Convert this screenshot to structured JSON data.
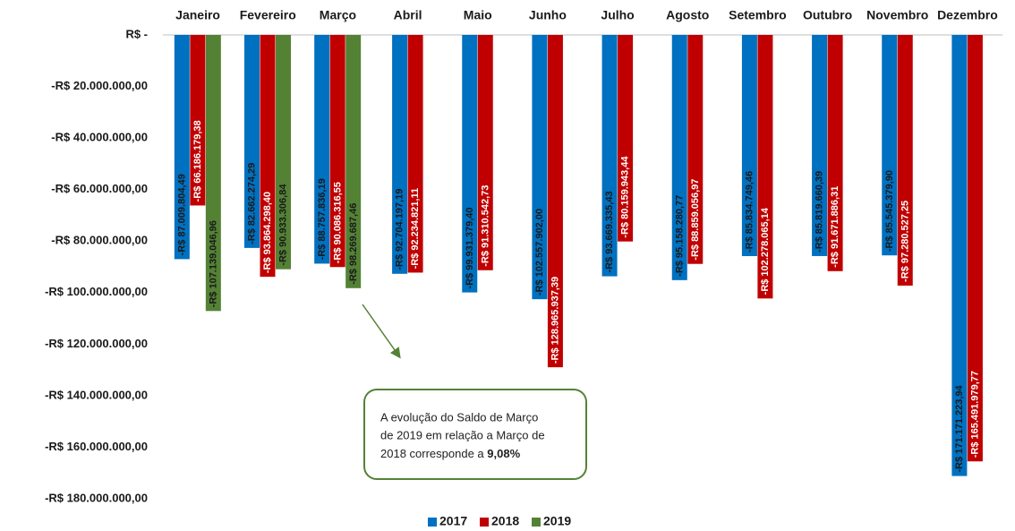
{
  "chart_data": {
    "type": "bar",
    "categories": [
      "Janeiro",
      "Fevereiro",
      "Março",
      "Abril",
      "Maio",
      "Junho",
      "Julho",
      "Agosto",
      "Setembro",
      "Outubro",
      "Novembro",
      "Dezembro"
    ],
    "series": [
      {
        "name": "2017",
        "color": "#0070c0",
        "label_color": "#1a1a1a",
        "values": [
          -87009804.49,
          -82662274.29,
          -88757836.19,
          -92704197.19,
          -99931379.4,
          -102557902.0,
          -93669335.43,
          -95158280.77,
          -85834749.46,
          -85819660.39,
          -85545379.9,
          -171171223.94
        ],
        "value_labels": [
          "-R$ 87.009.804,49",
          "-R$ 82.662.274,29",
          "-R$ 88.757.836,19",
          "-R$ 92.704.197,19",
          "-R$ 99.931.379,40",
          "-R$ 102.557.902,00",
          "-R$ 93.669.335,43",
          "-R$ 95.158.280,77",
          "-R$ 85.834.749,46",
          "-R$ 85.819.660,39",
          "-R$ 85.545.379,90",
          "-R$ 171.171.223,94"
        ]
      },
      {
        "name": "2018",
        "color": "#c00000",
        "label_color": "#ffffff",
        "values": [
          -66186179.38,
          -93864298.4,
          -90086316.55,
          -92234821.11,
          -91310542.73,
          -128965937.39,
          -80159943.44,
          -88859056.97,
          -102278065.14,
          -91671886.31,
          -97280527.25,
          -165491979.77
        ],
        "value_labels": [
          "-R$ 66.186.179,38",
          "-R$ 93.864.298,40",
          "-R$ 90.086.316,55",
          "-R$ 92.234.821,11",
          "-R$ 91.310.542,73",
          "-R$ 128.965.937,39",
          "-R$ 80.159.943,44",
          "-R$ 88.859.056,97",
          "-R$ 102.278.065,14",
          "-R$ 91.671.886,31",
          "-R$ 97.280.527,25",
          "-R$ 165.491.979,77"
        ]
      },
      {
        "name": "2019",
        "color": "#548235",
        "label_color": "#1a1a1a",
        "values": [
          -107139046.96,
          -90933306.84,
          -98269687.46,
          null,
          null,
          null,
          null,
          null,
          null,
          null,
          null,
          null
        ],
        "value_labels": [
          "-R$ 107.139.046,96",
          "-R$ 90.933.306,84",
          "-R$ 98.269.687,46",
          null,
          null,
          null,
          null,
          null,
          null,
          null,
          null,
          null
        ]
      }
    ],
    "ylim": [
      0,
      -180000000
    ],
    "yticks": [
      {
        "value": 0,
        "label": "R$ -"
      },
      {
        "value": -20000000,
        "label": "-R$ 20.000.000,00"
      },
      {
        "value": -40000000,
        "label": "-R$ 40.000.000,00"
      },
      {
        "value": -60000000,
        "label": "-R$ 60.000.000,00"
      },
      {
        "value": -80000000,
        "label": "-R$ 80.000.000,00"
      },
      {
        "value": -100000000,
        "label": "-R$ 100.000.000,00"
      },
      {
        "value": -120000000,
        "label": "-R$ 120.000.000,00"
      },
      {
        "value": -140000000,
        "label": "-R$ 140.000.000,00"
      },
      {
        "value": -160000000,
        "label": "-R$ 160.000.000,00"
      },
      {
        "value": -180000000,
        "label": "-R$ 180.000.000,00"
      }
    ],
    "legend": "bottom",
    "annotation": {
      "lines": [
        "A evolução do Saldo de Março",
        "de 2019 em relação a Março de",
        "2018 corresponde  a"
      ],
      "highlight": "9,08%"
    }
  }
}
